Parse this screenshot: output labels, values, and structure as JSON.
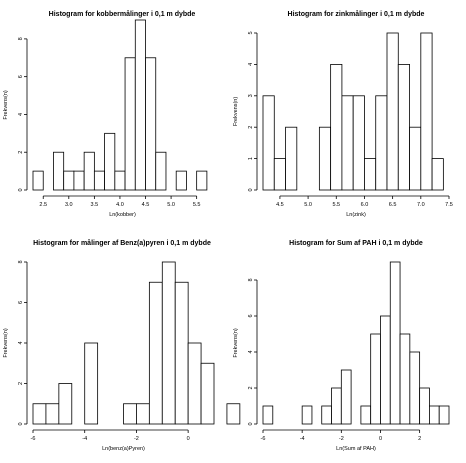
{
  "chart_data": [
    {
      "type": "histogram",
      "title": "Histogram for kobbermålinger i 0,1 m dybde",
      "xlabel": "Ln(kobber)",
      "ylabel": "Frekvens(n)",
      "x_ticks": [
        2.5,
        3.0,
        3.5,
        4.0,
        4.5,
        5.0,
        5.5
      ],
      "x_tick_labels": [
        "2.5",
        "3.0",
        "3.5",
        "4.0",
        "4.5",
        "5.0",
        "5.5"
      ],
      "y_ticks": [
        0,
        2,
        4,
        6,
        8
      ],
      "xlim": [
        2.3,
        5.8
      ],
      "ylim": [
        0,
        9
      ],
      "bins": [
        {
          "x0": 2.3,
          "x1": 2.5,
          "count": 1
        },
        {
          "x0": 2.5,
          "x1": 2.7,
          "count": 0
        },
        {
          "x0": 2.7,
          "x1": 2.9,
          "count": 2
        },
        {
          "x0": 2.9,
          "x1": 3.1,
          "count": 1
        },
        {
          "x0": 3.1,
          "x1": 3.3,
          "count": 1
        },
        {
          "x0": 3.3,
          "x1": 3.5,
          "count": 2
        },
        {
          "x0": 3.5,
          "x1": 3.7,
          "count": 1
        },
        {
          "x0": 3.7,
          "x1": 3.9,
          "count": 3
        },
        {
          "x0": 3.9,
          "x1": 4.1,
          "count": 1
        },
        {
          "x0": 4.1,
          "x1": 4.3,
          "count": 7
        },
        {
          "x0": 4.3,
          "x1": 4.5,
          "count": 9
        },
        {
          "x0": 4.5,
          "x1": 4.7,
          "count": 7
        },
        {
          "x0": 4.7,
          "x1": 4.9,
          "count": 2
        },
        {
          "x0": 4.9,
          "x1": 5.1,
          "count": 0
        },
        {
          "x0": 5.1,
          "x1": 5.3,
          "count": 1
        },
        {
          "x0": 5.3,
          "x1": 5.5,
          "count": 0
        },
        {
          "x0": 5.5,
          "x1": 5.7,
          "count": 1
        }
      ]
    },
    {
      "type": "histogram",
      "title": "Histogram for zinkmålinger i 0,1 m dybde",
      "xlabel": "Ln(zink)",
      "ylabel": "Frekvens(n)",
      "x_ticks": [
        4.5,
        5.0,
        5.5,
        6.0,
        6.5,
        7.0,
        7.5
      ],
      "x_tick_labels": [
        "4.5",
        "5.0",
        "5.5",
        "6.0",
        "6.5",
        "7.0",
        "7.5"
      ],
      "y_ticks": [
        0,
        1,
        2,
        3,
        4,
        5
      ],
      "xlim": [
        4.2,
        7.5
      ],
      "ylim": [
        0,
        5
      ],
      "bins": [
        {
          "x0": 4.2,
          "x1": 4.4,
          "count": 3
        },
        {
          "x0": 4.4,
          "x1": 4.6,
          "count": 1
        },
        {
          "x0": 4.6,
          "x1": 4.8,
          "count": 2
        },
        {
          "x0": 4.8,
          "x1": 5.0,
          "count": 0
        },
        {
          "x0": 5.0,
          "x1": 5.2,
          "count": 0
        },
        {
          "x0": 5.2,
          "x1": 5.4,
          "count": 2
        },
        {
          "x0": 5.4,
          "x1": 5.6,
          "count": 4
        },
        {
          "x0": 5.6,
          "x1": 5.8,
          "count": 3
        },
        {
          "x0": 5.8,
          "x1": 6.0,
          "count": 3
        },
        {
          "x0": 6.0,
          "x1": 6.2,
          "count": 1
        },
        {
          "x0": 6.2,
          "x1": 6.4,
          "count": 3
        },
        {
          "x0": 6.4,
          "x1": 6.6,
          "count": 5
        },
        {
          "x0": 6.6,
          "x1": 6.8,
          "count": 4
        },
        {
          "x0": 6.8,
          "x1": 7.0,
          "count": 2
        },
        {
          "x0": 7.0,
          "x1": 7.2,
          "count": 5
        },
        {
          "x0": 7.2,
          "x1": 7.4,
          "count": 1
        }
      ]
    },
    {
      "type": "histogram",
      "title": "Histogram for målinger af Benz(a)pyren i 0,1 m dybde",
      "xlabel": "Ln(benz(a)Pyren)",
      "ylabel": "Frekvens(n)",
      "x_ticks": [
        -6,
        -4,
        -2,
        0
      ],
      "x_tick_labels": [
        "-6",
        "-4",
        "-2",
        "0"
      ],
      "y_ticks": [
        0,
        2,
        4,
        6,
        8
      ],
      "xlim": [
        -6,
        1.0
      ],
      "ylim": [
        0,
        8
      ],
      "bins": [
        {
          "x0": -6.0,
          "x1": -5.5,
          "count": 1
        },
        {
          "x0": -5.5,
          "x1": -5.0,
          "count": 1
        },
        {
          "x0": -5.0,
          "x1": -4.5,
          "count": 2
        },
        {
          "x0": -4.5,
          "x1": -4.0,
          "count": 0
        },
        {
          "x0": -4.0,
          "x1": -3.5,
          "count": 4
        },
        {
          "x0": -3.5,
          "x1": -3.0,
          "count": 0
        },
        {
          "x0": -3.0,
          "x1": -2.5,
          "count": 0
        },
        {
          "x0": -2.5,
          "x1": -2.0,
          "count": 1
        },
        {
          "x0": -2.0,
          "x1": -1.5,
          "count": 1
        },
        {
          "x0": -1.5,
          "x1": -1.0,
          "count": 7
        },
        {
          "x0": -1.0,
          "x1": -0.5,
          "count": 8
        },
        {
          "x0": -0.5,
          "x1": 0.0,
          "count": 7
        },
        {
          "x0": 0.0,
          "x1": 0.5,
          "count": 4
        },
        {
          "x0": 0.5,
          "x1": 1.0,
          "count": 3
        },
        {
          "x0": 1.0,
          "x1": 1.5,
          "count": 0
        },
        {
          "x0": 1.5,
          "x1": 2.0,
          "count": 1
        }
      ]
    },
    {
      "type": "histogram",
      "title": "Histogram for Sum af PAH i 0,1 m dybde",
      "xlabel": "Ln(Sum af PAH)",
      "ylabel": "Frekvens(n)",
      "x_ticks": [
        -6,
        -4,
        -2,
        0,
        2
      ],
      "x_tick_labels": [
        "-6",
        "-4",
        "-2",
        "0",
        "2"
      ],
      "y_ticks": [
        0,
        2,
        4,
        6,
        8
      ],
      "xlim": [
        -6,
        3.5
      ],
      "ylim": [
        0,
        9
      ],
      "bins": [
        {
          "x0": -6.0,
          "x1": -5.5,
          "count": 1
        },
        {
          "x0": -5.5,
          "x1": -5.0,
          "count": 0
        },
        {
          "x0": -5.0,
          "x1": -4.5,
          "count": 0
        },
        {
          "x0": -4.5,
          "x1": -4.0,
          "count": 0
        },
        {
          "x0": -4.0,
          "x1": -3.5,
          "count": 1
        },
        {
          "x0": -3.5,
          "x1": -3.0,
          "count": 0
        },
        {
          "x0": -3.0,
          "x1": -2.5,
          "count": 1
        },
        {
          "x0": -2.5,
          "x1": -2.0,
          "count": 2
        },
        {
          "x0": -2.0,
          "x1": -1.5,
          "count": 3
        },
        {
          "x0": -1.5,
          "x1": -1.0,
          "count": 0
        },
        {
          "x0": -1.0,
          "x1": -0.5,
          "count": 1
        },
        {
          "x0": -0.5,
          "x1": 0.0,
          "count": 5
        },
        {
          "x0": 0.0,
          "x1": 0.5,
          "count": 6
        },
        {
          "x0": 0.5,
          "x1": 1.0,
          "count": 9
        },
        {
          "x0": 1.0,
          "x1": 1.5,
          "count": 5
        },
        {
          "x0": 1.5,
          "x1": 2.0,
          "count": 4
        },
        {
          "x0": 2.0,
          "x1": 2.5,
          "count": 2
        },
        {
          "x0": 2.5,
          "x1": 3.0,
          "count": 1
        },
        {
          "x0": 3.0,
          "x1": 3.5,
          "count": 1
        }
      ]
    }
  ]
}
